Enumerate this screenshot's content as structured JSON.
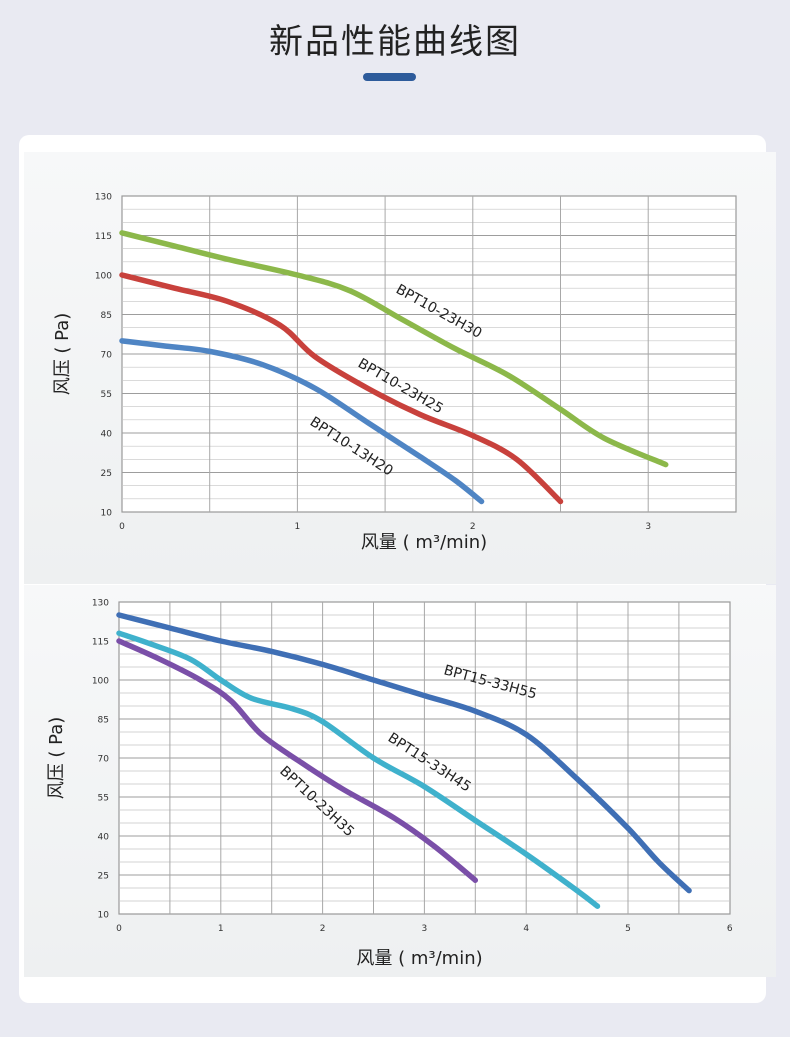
{
  "header": {
    "title": "新品性能曲线图",
    "accent_color": "#2d5b9b"
  },
  "chart_data": [
    {
      "type": "line",
      "xlabel": "风量 ( m³/min)",
      "ylabel": "风压 ( Pa)",
      "xlim": [
        0,
        3.5
      ],
      "ylim": [
        10,
        130
      ],
      "x_ticks": [
        "0",
        "1",
        "2",
        "3"
      ],
      "y_ticks": [
        "10",
        "25",
        "40",
        "55",
        "70",
        "85",
        "100",
        "115",
        "130"
      ],
      "grid": true,
      "series": [
        {
          "name": "BPT10-23H30",
          "color": "#8cb84a",
          "x": [
            0,
            0.3,
            0.6,
            1.0,
            1.3,
            1.6,
            1.9,
            2.2,
            2.5,
            2.75,
            3.1
          ],
          "y": [
            116,
            111,
            106,
            100,
            94,
            83,
            72,
            62,
            49,
            38,
            28
          ]
        },
        {
          "name": "BPT10-23H25",
          "color": "#c8413c",
          "x": [
            0,
            0.3,
            0.6,
            0.9,
            1.1,
            1.4,
            1.7,
            2.0,
            2.25,
            2.5
          ],
          "y": [
            100,
            95,
            90,
            81,
            69,
            57,
            47,
            39,
            30,
            14
          ]
        },
        {
          "name": "BPT10-13H20",
          "color": "#4f85c4",
          "x": [
            0,
            0.25,
            0.5,
            0.8,
            1.1,
            1.4,
            1.7,
            1.9,
            2.05
          ],
          "y": [
            75,
            73,
            71,
            66,
            57,
            44,
            31,
            22,
            14
          ]
        }
      ]
    },
    {
      "type": "line",
      "xlabel": "风量 ( m³/min)",
      "ylabel": "风压 ( Pa)",
      "xlim": [
        0,
        6
      ],
      "ylim": [
        10,
        130
      ],
      "x_ticks": [
        "0",
        "1",
        "2",
        "3",
        "4",
        "5",
        "6"
      ],
      "y_ticks": [
        "10",
        "25",
        "40",
        "55",
        "70",
        "85",
        "100",
        "115",
        "130"
      ],
      "grid": true,
      "series": [
        {
          "name": "BPT15-33H55",
          "color": "#3f6fb5",
          "x": [
            0,
            0.5,
            1.0,
            1.5,
            2.0,
            2.5,
            3.0,
            3.5,
            4.0,
            4.5,
            5.0,
            5.3,
            5.6
          ],
          "y": [
            125,
            120,
            115,
            111,
            106,
            100,
            94,
            88,
            79,
            62,
            43,
            30,
            19
          ]
        },
        {
          "name": "BPT15-33H45",
          "color": "#3fb1cc",
          "x": [
            0,
            0.3,
            0.7,
            1.0,
            1.3,
            1.7,
            2.0,
            2.5,
            3.0,
            3.5,
            4.0,
            4.5,
            4.7
          ],
          "y": [
            118,
            114,
            108,
            100,
            93,
            89,
            84,
            70,
            59,
            46,
            33,
            19,
            13
          ]
        },
        {
          "name": "BPT10-23H35",
          "color": "#7a4fa8",
          "x": [
            0,
            0.4,
            0.8,
            1.1,
            1.4,
            1.8,
            2.2,
            2.7,
            3.1,
            3.5
          ],
          "y": [
            115,
            108,
            100,
            92,
            79,
            68,
            58,
            47,
            36,
            23
          ]
        }
      ]
    }
  ]
}
